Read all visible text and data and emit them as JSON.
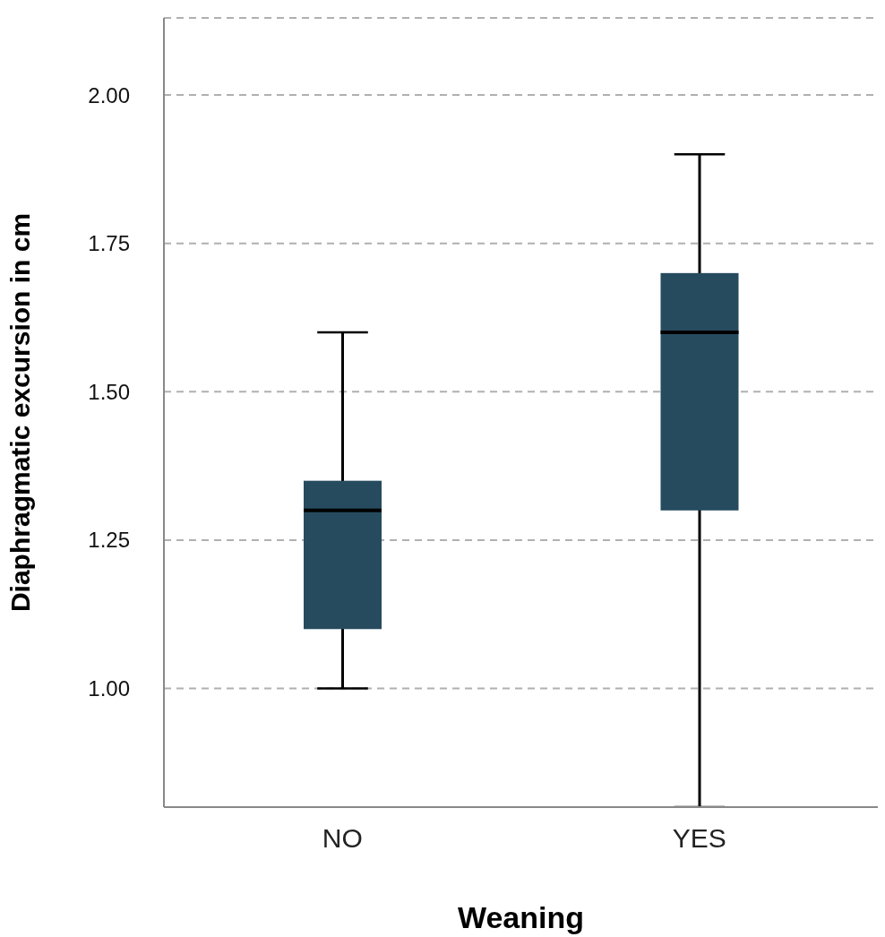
{
  "chart_data": {
    "type": "box",
    "xlabel": "Weaning",
    "ylabel": "Diaphragmatic excursion in cm",
    "categories": [
      "NO",
      "YES"
    ],
    "color": "#264b5f",
    "boxes": [
      {
        "low": 1.0,
        "q1": 1.1,
        "median": 1.3,
        "q3": 1.35,
        "high": 1.6
      },
      {
        "low": 0.8,
        "q1": 1.3,
        "median": 1.6,
        "q3": 1.7,
        "high": 1.9
      }
    ],
    "ylim": [
      0.8,
      2.13
    ],
    "yticks": [
      {
        "value": 1,
        "label": "1.00"
      },
      {
        "value": 1.25,
        "label": "1.25"
      },
      {
        "value": 1.5,
        "label": "1.50"
      },
      {
        "value": 1.75,
        "label": "1.75"
      },
      {
        "value": 2,
        "label": "2.00"
      }
    ],
    "grid": "y"
  }
}
